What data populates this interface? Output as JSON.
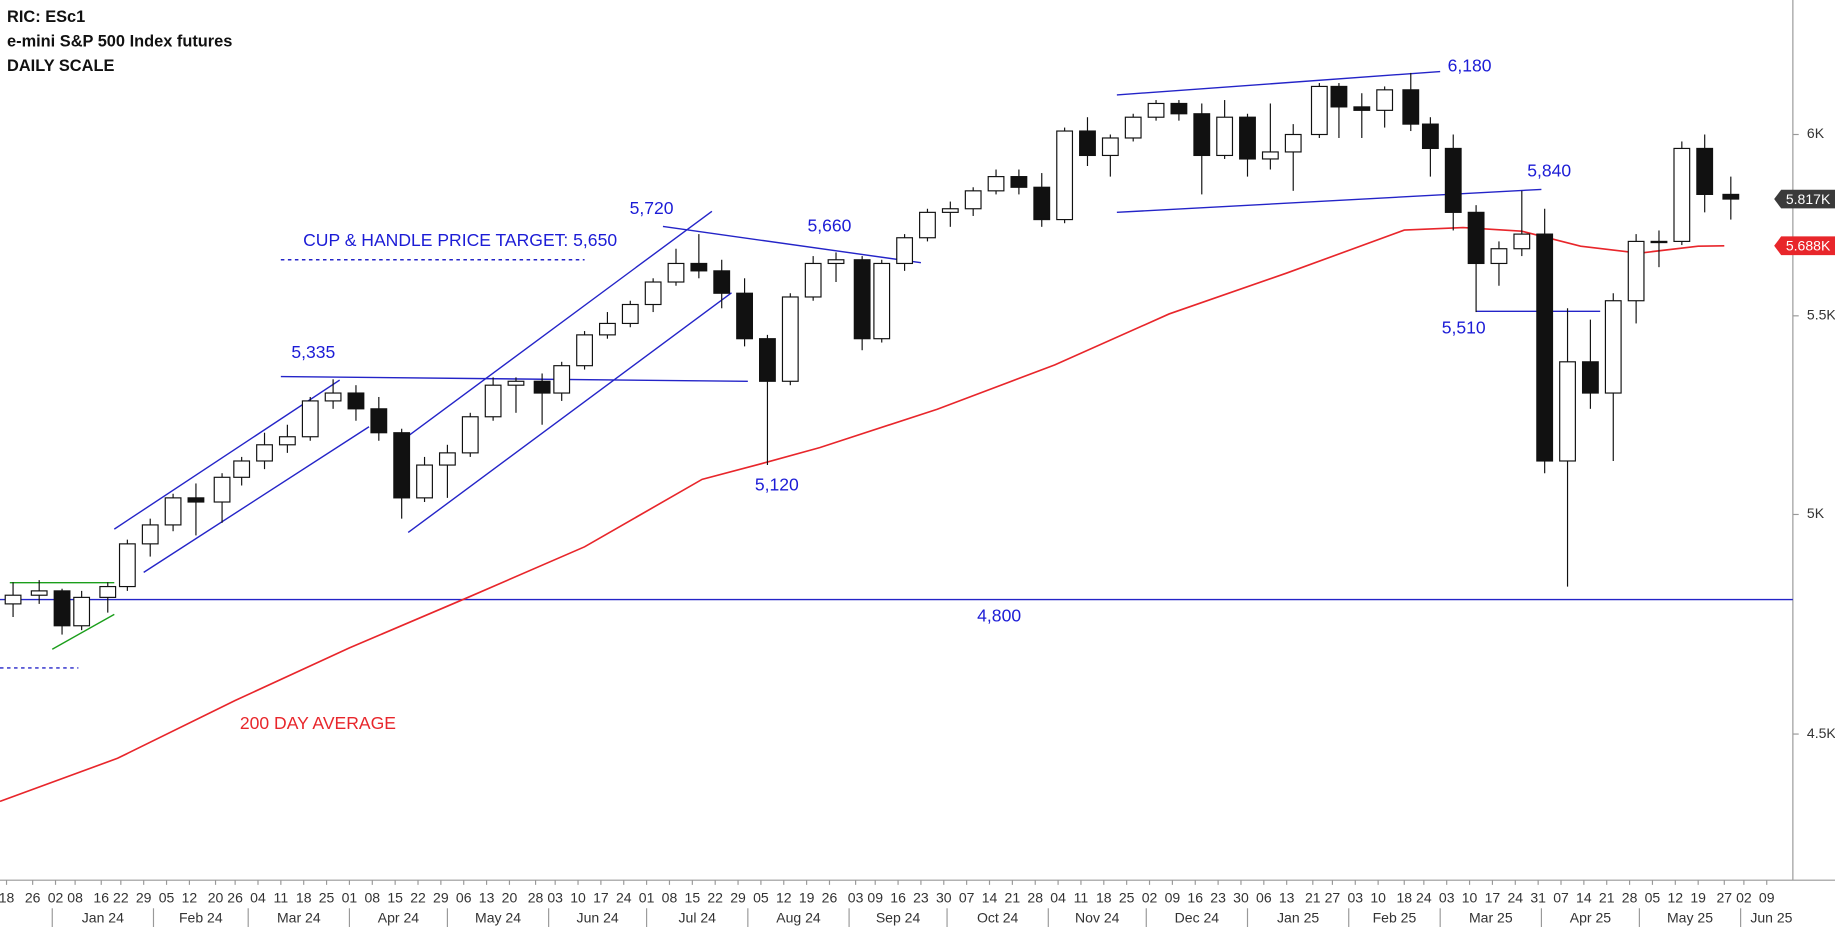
{
  "chart_data": {
    "type": "candlestick",
    "title": [
      "RIC: ESc1",
      "e-mini S&P 500 Index futures",
      "DAILY SCALE"
    ],
    "log_scale": true,
    "xlim": [
      "2023-12-16",
      "2025-06-17"
    ],
    "ylim": [
      4200,
      6400
    ],
    "yticks": [
      {
        "value": 4500,
        "label": "4.5K"
      },
      {
        "value": 5000,
        "label": "5K"
      },
      {
        "value": 5500,
        "label": "5.5K"
      },
      {
        "value": 6000,
        "label": "6K"
      }
    ],
    "xticks": [
      {
        "value": "2023-12-18",
        "label": "18"
      },
      {
        "value": "2023-12-26",
        "label": "26"
      },
      {
        "value": "2024-01-02",
        "label": "02"
      },
      {
        "value": "2024-01-08",
        "label": "08"
      },
      {
        "value": "2024-01-16",
        "label": "16"
      },
      {
        "value": "2024-01-22",
        "label": "22"
      },
      {
        "value": "2024-01-29",
        "label": "29"
      },
      {
        "value": "2024-02-05",
        "label": "05"
      },
      {
        "value": "2024-02-12",
        "label": "12"
      },
      {
        "value": "2024-02-20",
        "label": "20"
      },
      {
        "value": "2024-02-26",
        "label": "26"
      },
      {
        "value": "2024-03-04",
        "label": "04"
      },
      {
        "value": "2024-03-11",
        "label": "11"
      },
      {
        "value": "2024-03-18",
        "label": "18"
      },
      {
        "value": "2024-03-25",
        "label": "25"
      },
      {
        "value": "2024-04-01",
        "label": "01"
      },
      {
        "value": "2024-04-08",
        "label": "08"
      },
      {
        "value": "2024-04-15",
        "label": "15"
      },
      {
        "value": "2024-04-22",
        "label": "22"
      },
      {
        "value": "2024-04-29",
        "label": "29"
      },
      {
        "value": "2024-05-06",
        "label": "06"
      },
      {
        "value": "2024-05-13",
        "label": "13"
      },
      {
        "value": "2024-05-20",
        "label": "20"
      },
      {
        "value": "2024-05-28",
        "label": "28"
      },
      {
        "value": "2024-06-03",
        "label": "03"
      },
      {
        "value": "2024-06-10",
        "label": "10"
      },
      {
        "value": "2024-06-17",
        "label": "17"
      },
      {
        "value": "2024-06-24",
        "label": "24"
      },
      {
        "value": "2024-07-01",
        "label": "01"
      },
      {
        "value": "2024-07-08",
        "label": "08"
      },
      {
        "value": "2024-07-15",
        "label": "15"
      },
      {
        "value": "2024-07-22",
        "label": "22"
      },
      {
        "value": "2024-07-29",
        "label": "29"
      },
      {
        "value": "2024-08-05",
        "label": "05"
      },
      {
        "value": "2024-08-12",
        "label": "12"
      },
      {
        "value": "2024-08-19",
        "label": "19"
      },
      {
        "value": "2024-08-26",
        "label": "26"
      },
      {
        "value": "2024-09-03",
        "label": "03"
      },
      {
        "value": "2024-09-09",
        "label": "09"
      },
      {
        "value": "2024-09-16",
        "label": "16"
      },
      {
        "value": "2024-09-23",
        "label": "23"
      },
      {
        "value": "2024-09-30",
        "label": "30"
      },
      {
        "value": "2024-10-07",
        "label": "07"
      },
      {
        "value": "2024-10-14",
        "label": "14"
      },
      {
        "value": "2024-10-21",
        "label": "21"
      },
      {
        "value": "2024-10-28",
        "label": "28"
      },
      {
        "value": "2024-11-04",
        "label": "04"
      },
      {
        "value": "2024-11-11",
        "label": "11"
      },
      {
        "value": "2024-11-18",
        "label": "18"
      },
      {
        "value": "2024-11-25",
        "label": "25"
      },
      {
        "value": "2024-12-02",
        "label": "02"
      },
      {
        "value": "2024-12-09",
        "label": "09"
      },
      {
        "value": "2024-12-16",
        "label": "16"
      },
      {
        "value": "2024-12-23",
        "label": "23"
      },
      {
        "value": "2024-12-30",
        "label": "30"
      },
      {
        "value": "2025-01-06",
        "label": "06"
      },
      {
        "value": "2025-01-13",
        "label": "13"
      },
      {
        "value": "2025-01-21",
        "label": "21"
      },
      {
        "value": "2025-01-27",
        "label": "27"
      },
      {
        "value": "2025-02-03",
        "label": "03"
      },
      {
        "value": "2025-02-10",
        "label": "10"
      },
      {
        "value": "2025-02-18",
        "label": "18"
      },
      {
        "value": "2025-02-24",
        "label": "24"
      },
      {
        "value": "2025-03-03",
        "label": "03"
      },
      {
        "value": "2025-03-10",
        "label": "10"
      },
      {
        "value": "2025-03-17",
        "label": "17"
      },
      {
        "value": "2025-03-24",
        "label": "24"
      },
      {
        "value": "2025-03-31",
        "label": "31"
      },
      {
        "value": "2025-04-07",
        "label": "07"
      },
      {
        "value": "2025-04-14",
        "label": "14"
      },
      {
        "value": "2025-04-21",
        "label": "21"
      },
      {
        "value": "2025-04-28",
        "label": "28"
      },
      {
        "value": "2025-05-05",
        "label": "05"
      },
      {
        "value": "2025-05-12",
        "label": "12"
      },
      {
        "value": "2025-05-19",
        "label": "19"
      },
      {
        "value": "2025-05-27",
        "label": "27"
      },
      {
        "value": "2025-06-02",
        "label": "02"
      },
      {
        "value": "2025-06-09",
        "label": "09"
      }
    ],
    "months": [
      {
        "value": "2024-01",
        "label": "Jan 24"
      },
      {
        "value": "2024-02",
        "label": "Feb 24"
      },
      {
        "value": "2024-03",
        "label": "Mar 24"
      },
      {
        "value": "2024-04",
        "label": "Apr 24"
      },
      {
        "value": "2024-05",
        "label": "May 24"
      },
      {
        "value": "2024-06",
        "label": "Jun 24"
      },
      {
        "value": "2024-07",
        "label": "Jul 24"
      },
      {
        "value": "2024-08",
        "label": "Aug 24"
      },
      {
        "value": "2024-09",
        "label": "Sep 24"
      },
      {
        "value": "2024-10",
        "label": "Oct 24"
      },
      {
        "value": "2024-11",
        "label": "Nov 24"
      },
      {
        "value": "2024-12",
        "label": "Dec 24"
      },
      {
        "value": "2025-01",
        "label": "Jan 25"
      },
      {
        "value": "2025-02",
        "label": "Feb 25"
      },
      {
        "value": "2025-03",
        "label": "Mar 25"
      },
      {
        "value": "2025-04",
        "label": "Apr 25"
      },
      {
        "value": "2025-05",
        "label": "May 25"
      },
      {
        "value": "2025-06",
        "label": "Jun 25"
      }
    ],
    "x": [
      "2023-12-18",
      "2023-12-26",
      "2024-01-02",
      "2024-01-08",
      "2024-01-16",
      "2024-01-22",
      "2024-01-29",
      "2024-02-05",
      "2024-02-12",
      "2024-02-20",
      "2024-02-26",
      "2024-03-04",
      "2024-03-11",
      "2024-03-18",
      "2024-03-25",
      "2024-04-01",
      "2024-04-08",
      "2024-04-15",
      "2024-04-22",
      "2024-04-29",
      "2024-05-06",
      "2024-05-13",
      "2024-05-20",
      "2024-05-28",
      "2024-06-03",
      "2024-06-10",
      "2024-06-17",
      "2024-06-24",
      "2024-07-01",
      "2024-07-08",
      "2024-07-15",
      "2024-07-22",
      "2024-07-29",
      "2024-08-05",
      "2024-08-12",
      "2024-08-19",
      "2024-08-26",
      "2024-09-03",
      "2024-09-09",
      "2024-09-16",
      "2024-09-23",
      "2024-09-30",
      "2024-10-07",
      "2024-10-14",
      "2024-10-21",
      "2024-10-28",
      "2024-11-04",
      "2024-11-11",
      "2024-11-18",
      "2024-11-25",
      "2024-12-02",
      "2024-12-09",
      "2024-12-16",
      "2024-12-23",
      "2024-12-30",
      "2025-01-06",
      "2025-01-13",
      "2025-01-21",
      "2025-01-27",
      "2025-02-03",
      "2025-02-10",
      "2025-02-18",
      "2025-02-24",
      "2025-03-03",
      "2025-03-10",
      "2025-03-17",
      "2025-03-24",
      "2025-03-31",
      "2025-04-07",
      "2025-04-14",
      "2025-04-21",
      "2025-04-28",
      "2025-05-05",
      "2025-05-12",
      "2025-05-19",
      "2025-05-27"
    ],
    "open": [
      4790,
      4810,
      4820,
      4740,
      4805,
      4830,
      4930,
      4975,
      5040,
      5030,
      5090,
      5130,
      5170,
      5190,
      5280,
      5300,
      5260,
      5200,
      5040,
      5120,
      5150,
      5240,
      5320,
      5330,
      5300,
      5370,
      5450,
      5480,
      5530,
      5590,
      5640,
      5620,
      5560,
      5440,
      5330,
      5550,
      5640,
      5650,
      5440,
      5640,
      5710,
      5780,
      5790,
      5840,
      5880,
      5850,
      5760,
      6010,
      5940,
      5990,
      6050,
      6090,
      6060,
      5940,
      6050,
      5930,
      5950,
      6000,
      6140,
      6080,
      6070,
      6130,
      6030,
      5960,
      5780,
      5640,
      5680,
      5720,
      5130,
      5380,
      5300,
      5540,
      5700,
      5700,
      5960,
      5830
    ],
    "high": [
      4840,
      4845,
      4825,
      4820,
      4840,
      4940,
      4990,
      5050,
      5075,
      5100,
      5140,
      5200,
      5220,
      5290,
      5335,
      5320,
      5290,
      5210,
      5140,
      5170,
      5250,
      5340,
      5340,
      5350,
      5380,
      5460,
      5510,
      5540,
      5600,
      5680,
      5720,
      5650,
      5600,
      5450,
      5560,
      5660,
      5670,
      5660,
      5650,
      5720,
      5790,
      5810,
      5850,
      5900,
      5900,
      5890,
      6020,
      6050,
      6000,
      6060,
      6100,
      6100,
      6090,
      6100,
      6060,
      6090,
      6030,
      6150,
      6150,
      6120,
      6140,
      6180,
      6050,
      6000,
      5800,
      5700,
      5840,
      5790,
      5520,
      5490,
      5560,
      5720,
      5730,
      5980,
      6000,
      5880
    ],
    "low": [
      4760,
      4790,
      4720,
      4730,
      4770,
      4820,
      4900,
      4960,
      4950,
      4980,
      5070,
      5110,
      5150,
      5180,
      5260,
      5230,
      5180,
      4990,
      5030,
      5040,
      5140,
      5230,
      5250,
      5220,
      5280,
      5360,
      5440,
      5470,
      5510,
      5580,
      5600,
      5520,
      5420,
      5120,
      5320,
      5540,
      5590,
      5410,
      5430,
      5620,
      5700,
      5740,
      5770,
      5830,
      5830,
      5740,
      5750,
      5910,
      5880,
      5980,
      6040,
      6040,
      5830,
      5930,
      5880,
      5900,
      5840,
      5990,
      5990,
      5990,
      6020,
      6010,
      5880,
      5730,
      5510,
      5580,
      5660,
      5100,
      4830,
      5260,
      5130,
      5480,
      5630,
      5690,
      5780,
      5760
    ],
    "close": [
      4810,
      4820,
      4740,
      4805,
      4830,
      4930,
      4975,
      5040,
      5030,
      5090,
      5130,
      5170,
      5190,
      5280,
      5300,
      5260,
      5200,
      5040,
      5120,
      5150,
      5240,
      5320,
      5330,
      5300,
      5370,
      5450,
      5480,
      5530,
      5590,
      5640,
      5620,
      5560,
      5440,
      5330,
      5550,
      5640,
      5650,
      5440,
      5640,
      5710,
      5780,
      5790,
      5840,
      5880,
      5850,
      5760,
      6010,
      5940,
      5990,
      6050,
      6090,
      6060,
      5940,
      6050,
      5930,
      5950,
      6000,
      6140,
      6080,
      6070,
      6130,
      6030,
      5960,
      5780,
      5640,
      5680,
      5720,
      5130,
      5380,
      5300,
      5540,
      5700,
      5700,
      5960,
      5830,
      5817
    ],
    "moving_average": {
      "label": "200 DAY AVERAGE",
      "color": "#e8262b",
      "x": [
        "2023-12-16",
        "2024-01-21",
        "2024-02-26",
        "2024-04-01",
        "2024-05-07",
        "2024-06-12",
        "2024-07-18",
        "2024-08-05",
        "2024-08-23",
        "2024-09-28",
        "2024-11-03",
        "2024-12-08",
        "2025-01-13",
        "2025-02-18",
        "2025-03-08",
        "2025-03-26",
        "2025-04-13",
        "2025-05-01",
        "2025-05-19",
        "2025-05-27"
      ],
      "values": [
        4357,
        4448,
        4573,
        4690,
        4804,
        4923,
        5085,
        5123,
        5163,
        5259,
        5372,
        5505,
        5614,
        5731,
        5738,
        5728,
        5687,
        5668,
        5687,
        5688
      ]
    },
    "last_price": {
      "value": 5817,
      "label": "5.817K"
    },
    "ma_last": {
      "value": 5688,
      "label": "5.688K"
    },
    "lines": [
      {
        "x": [
          "2023-12-16",
          "2025-06-17"
        ],
        "y": [
          4800,
          4800
        ],
        "color": "#2424c8"
      },
      {
        "x": [
          "2024-11-22",
          "2025-03-01"
        ],
        "y": [
          6115,
          6184
        ],
        "color": "#2424c8"
      },
      {
        "x": [
          "2024-11-22",
          "2025-04-01"
        ],
        "y": [
          5780,
          5844
        ],
        "color": "#2424c8"
      },
      {
        "x": [
          "2025-03-12",
          "2025-04-19"
        ],
        "y": [
          5512,
          5512
        ],
        "color": "#2424c8"
      },
      {
        "x": [
          "2024-03-11",
          "2024-08-01"
        ],
        "y": [
          5342,
          5330
        ],
        "color": "#2424c8"
      },
      {
        "x": [
          "2024-01-20",
          "2024-03-29"
        ],
        "y": [
          4965,
          5333
        ],
        "color": "#2424c8"
      },
      {
        "x": [
          "2024-01-29",
          "2024-04-07"
        ],
        "y": [
          4863,
          5215
        ],
        "color": "#2424c8"
      },
      {
        "x": [
          "2024-04-19",
          "2024-07-21"
        ],
        "y": [
          5192,
          5783
        ],
        "color": "#2424c8"
      },
      {
        "x": [
          "2024-04-19",
          "2024-07-27"
        ],
        "y": [
          4957,
          5561
        ],
        "color": "#2424c8"
      },
      {
        "x": [
          "2024-07-06",
          "2024-09-23"
        ],
        "y": [
          5741,
          5642
        ],
        "color": "#2424c8"
      },
      {
        "x": [
          "2023-12-19",
          "2024-01-20"
        ],
        "y": [
          4839,
          4839
        ],
        "color": "#1b9e1b"
      },
      {
        "x": [
          "2024-01-01",
          "2024-01-20"
        ],
        "y": [
          4687,
          4766
        ],
        "color": "#1b9e1b"
      },
      {
        "x": [
          "2024-03-11",
          "2024-06-12"
        ],
        "y": [
          5650,
          5650
        ],
        "color": "#2424c8",
        "dashed": true
      },
      {
        "x": [
          "2023-12-16",
          "2024-01-09"
        ],
        "y": [
          4645,
          4645
        ],
        "color": "#2424c8",
        "dashed": true
      }
    ],
    "annotation_color": "#1c1cd6",
    "annotations": [
      "6,180",
      "5,840",
      "5,720",
      "5,660",
      "CUP & HANDLE PRICE TARGET: 5,650",
      "5,335",
      "5,510",
      "5,120",
      "4,800"
    ]
  }
}
